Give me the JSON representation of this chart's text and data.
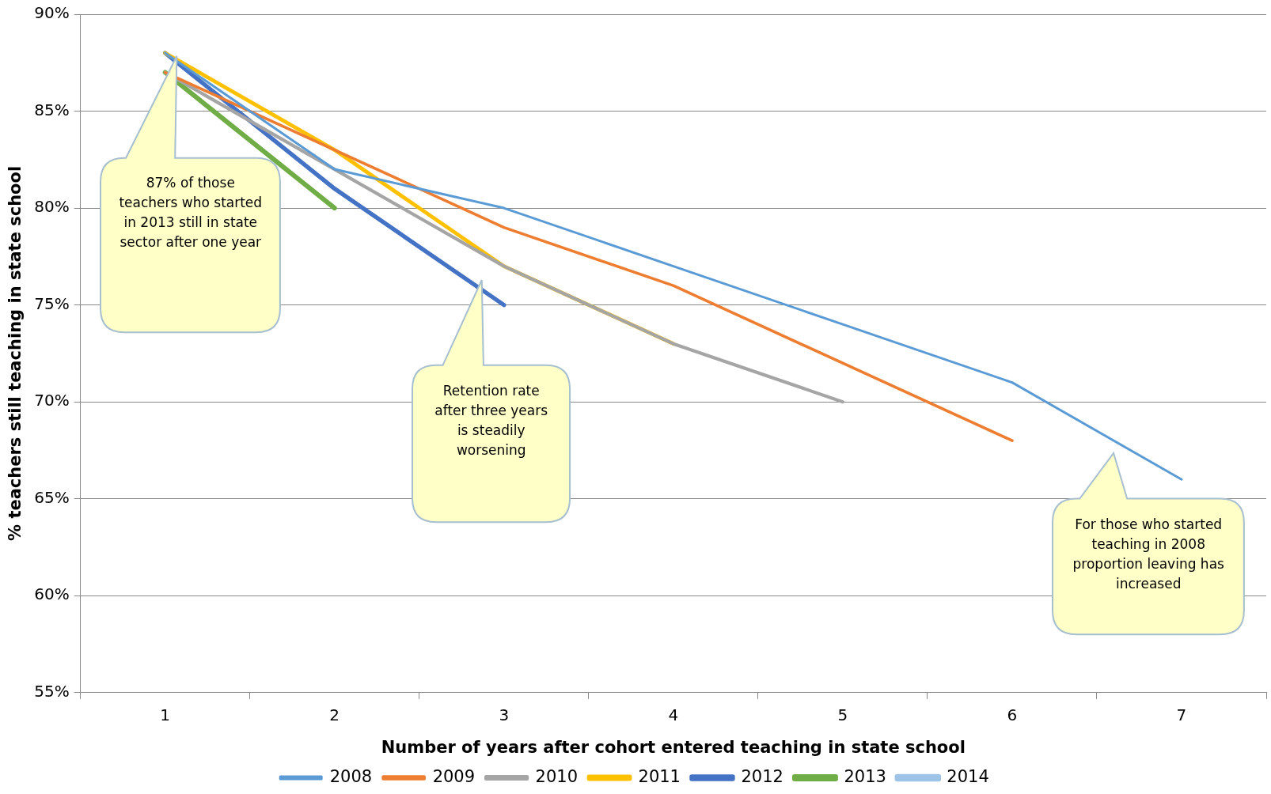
{
  "chart_data": {
    "type": "line",
    "xlabel": "Number of years after cohort entered teaching in state school",
    "ylabel": "% teachers still teaching in state school",
    "categories": [
      "1",
      "2",
      "3",
      "4",
      "5",
      "6",
      "7"
    ],
    "series": [
      {
        "name": "2008",
        "color": "#5b9bd5",
        "values": [
          88,
          82,
          80,
          77,
          74,
          71,
          66
        ]
      },
      {
        "name": "2009",
        "color": "#ed7d31",
        "values": [
          87,
          83,
          79,
          76,
          72,
          68,
          null
        ]
      },
      {
        "name": "2010",
        "color": "#a5a5a5",
        "values": [
          87,
          82,
          77,
          73,
          70,
          null,
          null
        ]
      },
      {
        "name": "2011",
        "color": "#ffc000",
        "values": [
          88,
          83,
          77,
          73,
          null,
          null,
          null
        ]
      },
      {
        "name": "2012",
        "color": "#4472c4",
        "values": [
          88,
          81,
          75,
          null,
          null,
          null,
          null
        ]
      },
      {
        "name": "2013",
        "color": "#70ad47",
        "values": [
          87,
          80,
          null,
          null,
          null,
          null,
          null
        ]
      },
      {
        "name": "2014",
        "color": "#9dc3e6",
        "values": [
          null,
          null,
          null,
          null,
          null,
          null,
          null
        ]
      }
    ],
    "ylim": [
      55,
      90
    ],
    "yticks": [
      {
        "value": 55,
        "label": "55%"
      },
      {
        "value": 60,
        "label": "60%"
      },
      {
        "value": 65,
        "label": "65%"
      },
      {
        "value": 70,
        "label": "70%"
      },
      {
        "value": 75,
        "label": "75%"
      },
      {
        "value": 80,
        "label": "80%"
      },
      {
        "value": 85,
        "label": "85%"
      },
      {
        "value": 90,
        "label": "90%"
      }
    ],
    "grid": "y",
    "legend": "bottom",
    "marker": "none",
    "line_style": "solid",
    "annotations": [
      "87%  of those teachers who started in 2013 still in state sector after one year",
      "Retention rate after three years is steadily worsening",
      "For those who started teaching in 2008 proportion leaving has increased"
    ]
  }
}
